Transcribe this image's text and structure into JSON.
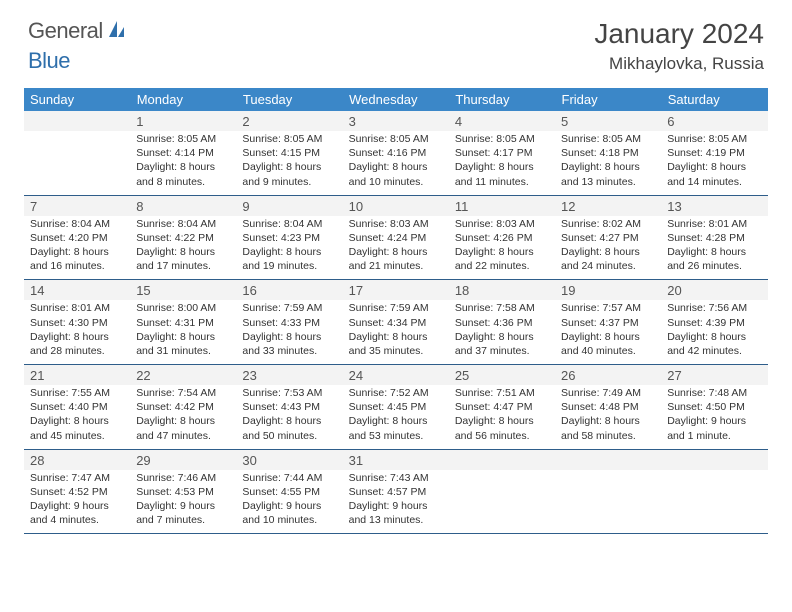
{
  "logo": {
    "word1": "General",
    "word2": "Blue"
  },
  "title": "January 2024",
  "location": "Mikhaylovka, Russia",
  "colors": {
    "header_bg": "#3b87c8",
    "header_text": "#ffffff",
    "rule": "#2e5d8a",
    "shaded_bg": "#f3f3f3",
    "body_text": "#333333",
    "daynum_text": "#555555"
  },
  "dayHeaders": [
    "Sunday",
    "Monday",
    "Tuesday",
    "Wednesday",
    "Thursday",
    "Friday",
    "Saturday"
  ],
  "weeks": [
    [
      {
        "num": "",
        "sunrise": "",
        "sunset": "",
        "daylight": ""
      },
      {
        "num": "1",
        "sunrise": "Sunrise: 8:05 AM",
        "sunset": "Sunset: 4:14 PM",
        "daylight": "Daylight: 8 hours and 8 minutes."
      },
      {
        "num": "2",
        "sunrise": "Sunrise: 8:05 AM",
        "sunset": "Sunset: 4:15 PM",
        "daylight": "Daylight: 8 hours and 9 minutes."
      },
      {
        "num": "3",
        "sunrise": "Sunrise: 8:05 AM",
        "sunset": "Sunset: 4:16 PM",
        "daylight": "Daylight: 8 hours and 10 minutes."
      },
      {
        "num": "4",
        "sunrise": "Sunrise: 8:05 AM",
        "sunset": "Sunset: 4:17 PM",
        "daylight": "Daylight: 8 hours and 11 minutes."
      },
      {
        "num": "5",
        "sunrise": "Sunrise: 8:05 AM",
        "sunset": "Sunset: 4:18 PM",
        "daylight": "Daylight: 8 hours and 13 minutes."
      },
      {
        "num": "6",
        "sunrise": "Sunrise: 8:05 AM",
        "sunset": "Sunset: 4:19 PM",
        "daylight": "Daylight: 8 hours and 14 minutes."
      }
    ],
    [
      {
        "num": "7",
        "sunrise": "Sunrise: 8:04 AM",
        "sunset": "Sunset: 4:20 PM",
        "daylight": "Daylight: 8 hours and 16 minutes."
      },
      {
        "num": "8",
        "sunrise": "Sunrise: 8:04 AM",
        "sunset": "Sunset: 4:22 PM",
        "daylight": "Daylight: 8 hours and 17 minutes."
      },
      {
        "num": "9",
        "sunrise": "Sunrise: 8:04 AM",
        "sunset": "Sunset: 4:23 PM",
        "daylight": "Daylight: 8 hours and 19 minutes."
      },
      {
        "num": "10",
        "sunrise": "Sunrise: 8:03 AM",
        "sunset": "Sunset: 4:24 PM",
        "daylight": "Daylight: 8 hours and 21 minutes."
      },
      {
        "num": "11",
        "sunrise": "Sunrise: 8:03 AM",
        "sunset": "Sunset: 4:26 PM",
        "daylight": "Daylight: 8 hours and 22 minutes."
      },
      {
        "num": "12",
        "sunrise": "Sunrise: 8:02 AM",
        "sunset": "Sunset: 4:27 PM",
        "daylight": "Daylight: 8 hours and 24 minutes."
      },
      {
        "num": "13",
        "sunrise": "Sunrise: 8:01 AM",
        "sunset": "Sunset: 4:28 PM",
        "daylight": "Daylight: 8 hours and 26 minutes."
      }
    ],
    [
      {
        "num": "14",
        "sunrise": "Sunrise: 8:01 AM",
        "sunset": "Sunset: 4:30 PM",
        "daylight": "Daylight: 8 hours and 28 minutes."
      },
      {
        "num": "15",
        "sunrise": "Sunrise: 8:00 AM",
        "sunset": "Sunset: 4:31 PM",
        "daylight": "Daylight: 8 hours and 31 minutes."
      },
      {
        "num": "16",
        "sunrise": "Sunrise: 7:59 AM",
        "sunset": "Sunset: 4:33 PM",
        "daylight": "Daylight: 8 hours and 33 minutes."
      },
      {
        "num": "17",
        "sunrise": "Sunrise: 7:59 AM",
        "sunset": "Sunset: 4:34 PM",
        "daylight": "Daylight: 8 hours and 35 minutes."
      },
      {
        "num": "18",
        "sunrise": "Sunrise: 7:58 AM",
        "sunset": "Sunset: 4:36 PM",
        "daylight": "Daylight: 8 hours and 37 minutes."
      },
      {
        "num": "19",
        "sunrise": "Sunrise: 7:57 AM",
        "sunset": "Sunset: 4:37 PM",
        "daylight": "Daylight: 8 hours and 40 minutes."
      },
      {
        "num": "20",
        "sunrise": "Sunrise: 7:56 AM",
        "sunset": "Sunset: 4:39 PM",
        "daylight": "Daylight: 8 hours and 42 minutes."
      }
    ],
    [
      {
        "num": "21",
        "sunrise": "Sunrise: 7:55 AM",
        "sunset": "Sunset: 4:40 PM",
        "daylight": "Daylight: 8 hours and 45 minutes."
      },
      {
        "num": "22",
        "sunrise": "Sunrise: 7:54 AM",
        "sunset": "Sunset: 4:42 PM",
        "daylight": "Daylight: 8 hours and 47 minutes."
      },
      {
        "num": "23",
        "sunrise": "Sunrise: 7:53 AM",
        "sunset": "Sunset: 4:43 PM",
        "daylight": "Daylight: 8 hours and 50 minutes."
      },
      {
        "num": "24",
        "sunrise": "Sunrise: 7:52 AM",
        "sunset": "Sunset: 4:45 PM",
        "daylight": "Daylight: 8 hours and 53 minutes."
      },
      {
        "num": "25",
        "sunrise": "Sunrise: 7:51 AM",
        "sunset": "Sunset: 4:47 PM",
        "daylight": "Daylight: 8 hours and 56 minutes."
      },
      {
        "num": "26",
        "sunrise": "Sunrise: 7:49 AM",
        "sunset": "Sunset: 4:48 PM",
        "daylight": "Daylight: 8 hours and 58 minutes."
      },
      {
        "num": "27",
        "sunrise": "Sunrise: 7:48 AM",
        "sunset": "Sunset: 4:50 PM",
        "daylight": "Daylight: 9 hours and 1 minute."
      }
    ],
    [
      {
        "num": "28",
        "sunrise": "Sunrise: 7:47 AM",
        "sunset": "Sunset: 4:52 PM",
        "daylight": "Daylight: 9 hours and 4 minutes."
      },
      {
        "num": "29",
        "sunrise": "Sunrise: 7:46 AM",
        "sunset": "Sunset: 4:53 PM",
        "daylight": "Daylight: 9 hours and 7 minutes."
      },
      {
        "num": "30",
        "sunrise": "Sunrise: 7:44 AM",
        "sunset": "Sunset: 4:55 PM",
        "daylight": "Daylight: 9 hours and 10 minutes."
      },
      {
        "num": "31",
        "sunrise": "Sunrise: 7:43 AM",
        "sunset": "Sunset: 4:57 PM",
        "daylight": "Daylight: 9 hours and 13 minutes."
      },
      {
        "num": "",
        "sunrise": "",
        "sunset": "",
        "daylight": ""
      },
      {
        "num": "",
        "sunrise": "",
        "sunset": "",
        "daylight": ""
      },
      {
        "num": "",
        "sunrise": "",
        "sunset": "",
        "daylight": ""
      }
    ]
  ]
}
